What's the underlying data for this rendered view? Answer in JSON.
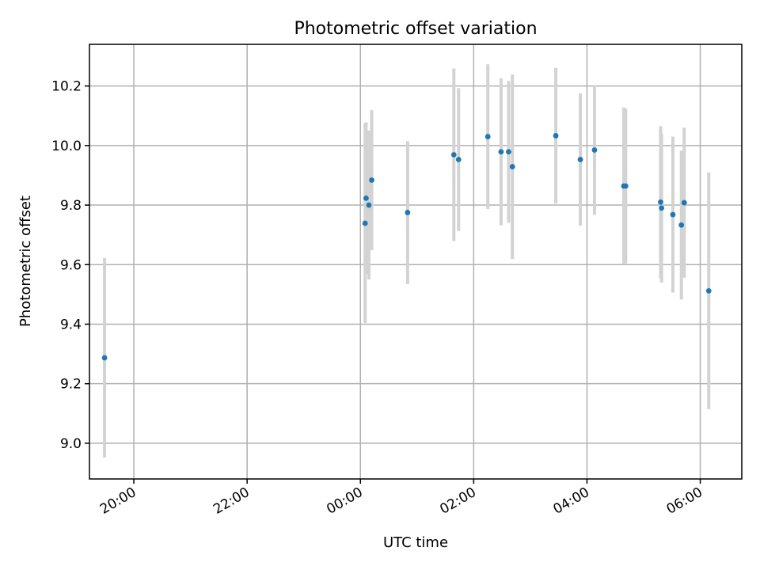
{
  "chart_data": {
    "type": "scatter",
    "title": "Photometric offset variation",
    "xlabel": "UTC time",
    "ylabel": "Photometric offset",
    "x_axis": "time",
    "xlim": [
      "19:13",
      "06:44"
    ],
    "ylim": [
      8.88,
      10.34
    ],
    "x_ticks": [
      "20:00",
      "22:00",
      "00:00",
      "02:00",
      "04:00",
      "06:00"
    ],
    "y_ticks": [
      9.0,
      9.2,
      9.4,
      9.6,
      9.8,
      10.0,
      10.2
    ],
    "grid": true,
    "colors": {
      "point": "#1f77b4",
      "error_bar": "#d3d3d3",
      "grid": "#b0b0b0"
    },
    "points": [
      {
        "time": "19:29",
        "y": 9.287,
        "err": 0.335
      },
      {
        "time": "00:05",
        "y": 9.739,
        "err": 0.335
      },
      {
        "time": "00:06",
        "y": 9.823,
        "err": 0.255
      },
      {
        "time": "00:09",
        "y": 9.8,
        "err": 0.25
      },
      {
        "time": "00:12",
        "y": 9.884,
        "err": 0.235
      },
      {
        "time": "00:50",
        "y": 9.775,
        "err": 0.24
      },
      {
        "time": "01:39",
        "y": 9.969,
        "err": 0.29
      },
      {
        "time": "01:44",
        "y": 9.953,
        "err": 0.24
      },
      {
        "time": "02:15",
        "y": 10.03,
        "err": 0.243
      },
      {
        "time": "02:29",
        "y": 9.979,
        "err": 0.247
      },
      {
        "time": "02:37",
        "y": 9.979,
        "err": 0.238
      },
      {
        "time": "02:41",
        "y": 9.929,
        "err": 0.31
      },
      {
        "time": "03:27",
        "y": 10.033,
        "err": 0.228
      },
      {
        "time": "03:53",
        "y": 9.953,
        "err": 0.222
      },
      {
        "time": "04:08",
        "y": 9.985,
        "err": 0.218
      },
      {
        "time": "04:39",
        "y": 9.864,
        "err": 0.264
      },
      {
        "time": "04:41",
        "y": 9.864,
        "err": 0.26
      },
      {
        "time": "05:18",
        "y": 9.81,
        "err": 0.255
      },
      {
        "time": "05:19",
        "y": 9.79,
        "err": 0.25
      },
      {
        "time": "05:31",
        "y": 9.768,
        "err": 0.262
      },
      {
        "time": "05:40",
        "y": 9.733,
        "err": 0.25
      },
      {
        "time": "05:43",
        "y": 9.808,
        "err": 0.252
      },
      {
        "time": "06:09",
        "y": 9.512,
        "err": 0.398
      }
    ]
  }
}
